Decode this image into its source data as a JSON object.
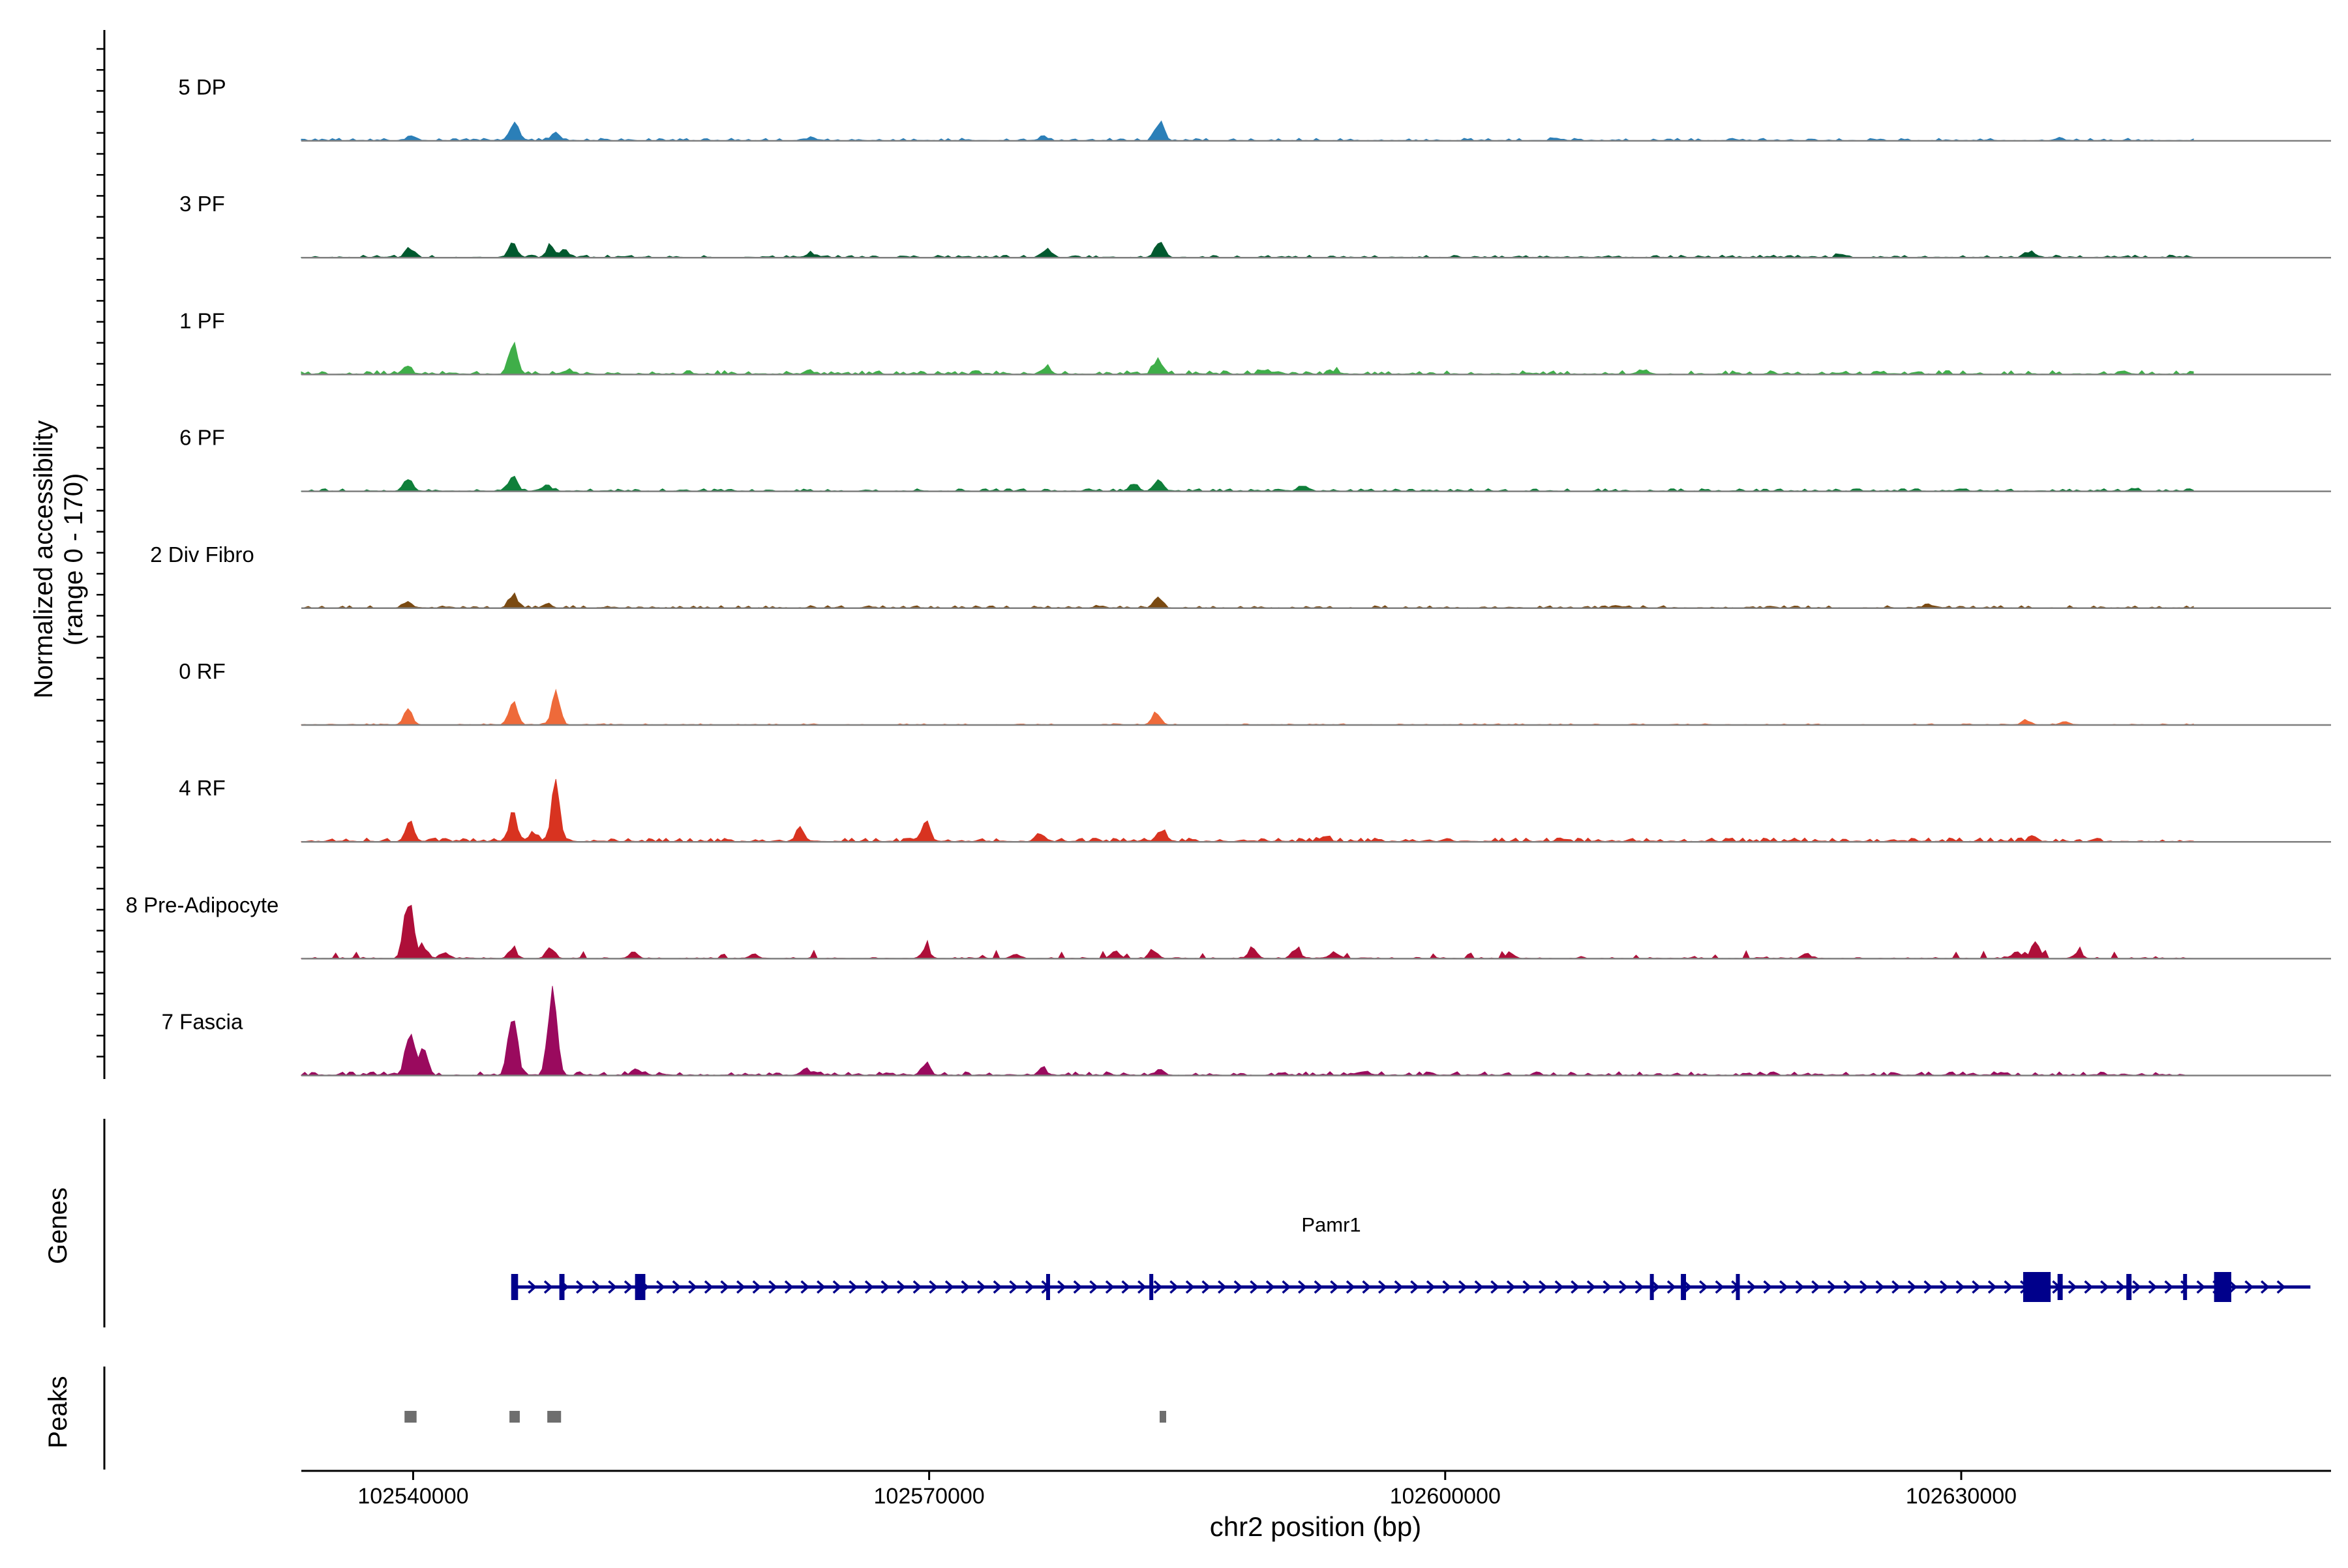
{
  "chart_data": {
    "type": "area",
    "ylabel_line1": "Normalized accessibility",
    "ylabel_line2": "(range 0 - 170)",
    "ylim": [
      0,
      170
    ],
    "xlabel": "chr2 position (bp)",
    "xlim": [
      102533500,
      102651500
    ],
    "xticks": [
      102540000,
      102570000,
      102600000,
      102630000
    ],
    "xtick_labels": [
      "102540000",
      "102570000",
      "102600000",
      "102630000"
    ],
    "data_start": 102533500,
    "data_end": 102643500,
    "genes_label": "Genes",
    "peaks_label": "Peaks",
    "gene": {
      "name": "Pamr1",
      "start": 102545800,
      "end": 102650300,
      "strand": "+",
      "color": "#00008B",
      "exons": [
        {
          "start": 102545700,
          "end": 102546100
        },
        {
          "start": 102548500,
          "end": 102548800
        },
        {
          "start": 102552900,
          "end": 102553500
        },
        {
          "start": 102576800,
          "end": 102577000
        },
        {
          "start": 102582800,
          "end": 102583000
        },
        {
          "start": 102611900,
          "end": 102612100
        },
        {
          "start": 102613700,
          "end": 102614000
        },
        {
          "start": 102616900,
          "end": 102617100
        },
        {
          "start": 102633600,
          "end": 102635200
        },
        {
          "start": 102635600,
          "end": 102635900
        },
        {
          "start": 102639600,
          "end": 102639900
        },
        {
          "start": 102642900,
          "end": 102643100
        },
        {
          "start": 102644700,
          "end": 102645700
        }
      ]
    },
    "peaks": [
      {
        "start": 102539500,
        "end": 102540200
      },
      {
        "start": 102545600,
        "end": 102546200
      },
      {
        "start": 102547800,
        "end": 102548600
      },
      {
        "start": 102583400,
        "end": 102583700
      }
    ],
    "series": [
      {
        "name": "5 DP",
        "color": "#2B7FB8",
        "noise": 2,
        "seed": 11,
        "peaks": [
          [
            102539900,
            4
          ],
          [
            102545900,
            18
          ],
          [
            102548300,
            6
          ],
          [
            102563300,
            2
          ],
          [
            102576700,
            3
          ],
          [
            102583400,
            14
          ],
          [
            102606400,
            2
          ],
          [
            102635700,
            2
          ]
        ]
      },
      {
        "name": "3 PF",
        "color": "#00592E",
        "noise": 2,
        "seed": 23,
        "peaks": [
          [
            102539800,
            8
          ],
          [
            102545800,
            11
          ],
          [
            102548000,
            9
          ],
          [
            102548800,
            6
          ],
          [
            102563100,
            3
          ],
          [
            102576800,
            6
          ],
          [
            102583400,
            14
          ],
          [
            102623000,
            3
          ],
          [
            102634000,
            4
          ]
        ]
      },
      {
        "name": "1 PF",
        "color": "#3FAE49",
        "noise": 3,
        "seed": 37,
        "peaks": [
          [
            102539600,
            6
          ],
          [
            102545800,
            23
          ],
          [
            102549000,
            3
          ],
          [
            102563000,
            3
          ],
          [
            102576800,
            5
          ],
          [
            102583300,
            12
          ],
          [
            102589400,
            3
          ],
          [
            102593600,
            3
          ],
          [
            102611600,
            2
          ]
        ]
      },
      {
        "name": "6 PF",
        "color": "#0F7F3A",
        "noise": 2,
        "seed": 53,
        "peaks": [
          [
            102539700,
            11
          ],
          [
            102545800,
            12
          ],
          [
            102547800,
            5
          ],
          [
            102581900,
            6
          ],
          [
            102583300,
            9
          ],
          [
            102591800,
            4
          ],
          [
            102630000,
            2
          ],
          [
            102640000,
            2
          ]
        ]
      },
      {
        "name": "2 Div Fibro",
        "color": "#7A4A12",
        "noise": 2,
        "seed": 71,
        "peaks": [
          [
            102539700,
            5
          ],
          [
            102545800,
            10
          ],
          [
            102547800,
            4
          ],
          [
            102583300,
            8
          ],
          [
            102580000,
            2
          ],
          [
            102610000,
            2
          ],
          [
            102628000,
            2
          ]
        ]
      },
      {
        "name": "0 RF",
        "color": "#EE6A3A",
        "noise": 1,
        "seed": 89,
        "peaks": [
          [
            102539700,
            12
          ],
          [
            102545800,
            19
          ],
          [
            102548300,
            24
          ],
          [
            102583200,
            9
          ],
          [
            102633800,
            4
          ],
          [
            102636000,
            3
          ]
        ]
      },
      {
        "name": "4 RF",
        "color": "#D83320",
        "noise": 3,
        "seed": 97,
        "peaks": [
          [
            102539800,
            14
          ],
          [
            102545800,
            22
          ],
          [
            102547000,
            7
          ],
          [
            102548300,
            44
          ],
          [
            102562500,
            9
          ],
          [
            102569800,
            14
          ],
          [
            102576500,
            6
          ],
          [
            102583500,
            10
          ],
          [
            102593000,
            4
          ],
          [
            102634200,
            4
          ]
        ]
      },
      {
        "name": "8 Pre-Adipocyte",
        "color": "#AE0F39",
        "noise": 1,
        "spiky": true,
        "seed": 113,
        "peaks": [
          [
            102539700,
            52
          ],
          [
            102540600,
            9
          ],
          [
            102541800,
            5
          ],
          [
            102545800,
            7
          ],
          [
            102548000,
            9
          ],
          [
            102552800,
            5
          ],
          [
            102559800,
            4
          ],
          [
            102569800,
            8
          ],
          [
            102575000,
            4
          ],
          [
            102580800,
            6
          ],
          [
            102583100,
            5
          ],
          [
            102588800,
            8
          ],
          [
            102591300,
            7
          ],
          [
            102593500,
            5
          ],
          [
            102603800,
            5
          ],
          [
            102621000,
            4
          ],
          [
            102634300,
            13
          ],
          [
            102633200,
            5
          ],
          [
            102636800,
            5
          ]
        ]
      },
      {
        "name": "7 Fascia",
        "color": "#9A0A5E",
        "noise": 3,
        "seed": 131,
        "peaks": [
          [
            102539800,
            34
          ],
          [
            102540600,
            18
          ],
          [
            102545800,
            52
          ],
          [
            102548100,
            68
          ],
          [
            102553000,
            5
          ],
          [
            102562800,
            5
          ],
          [
            102569800,
            10
          ],
          [
            102576600,
            5
          ],
          [
            102583400,
            5
          ],
          [
            102595300,
            3
          ]
        ]
      }
    ]
  }
}
